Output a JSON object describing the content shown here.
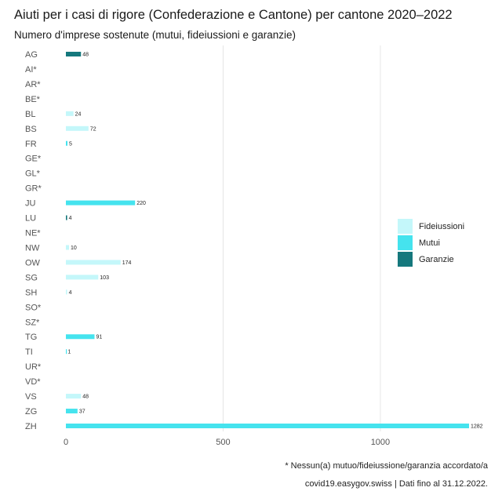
{
  "header": {
    "title": "Aiuti per i casi di rigore (Confederazione e Cantone) per cantone 2020–2022",
    "subtitle": "Numero d'imprese sostenute (mutui, fideiussioni e garanzie)"
  },
  "footer": {
    "footnote": "* Nessun(a) mutuo/fideiussione/garanzia accordato/a",
    "source": "covid19.easygov.swiss | Dati fino al 31.12.2022."
  },
  "legend": [
    {
      "label": "Fideiussioni",
      "color": "#c4f7fa"
    },
    {
      "label": "Mutui",
      "color": "#45e3ee"
    },
    {
      "label": "Garanzie",
      "color": "#15787d"
    }
  ],
  "chart_data": {
    "type": "bar",
    "orientation": "horizontal",
    "categories": [
      "AG",
      "AI*",
      "AR*",
      "BE*",
      "BL",
      "BS",
      "FR",
      "GE*",
      "GL*",
      "GR*",
      "JU",
      "LU",
      "NE*",
      "NW",
      "OW",
      "SG",
      "SH",
      "SO*",
      "SZ*",
      "TG",
      "TI",
      "UR*",
      "VD*",
      "VS",
      "ZG",
      "ZH"
    ],
    "series": [
      {
        "name": "Fideiussioni",
        "color": "#c4f7fa",
        "values": [
          0,
          0,
          0,
          0,
          24,
          72,
          0,
          0,
          0,
          0,
          0,
          0,
          0,
          10,
          174,
          103,
          4,
          0,
          0,
          0,
          0,
          0,
          0,
          48,
          0,
          0
        ]
      },
      {
        "name": "Mutui",
        "color": "#45e3ee",
        "values": [
          0,
          0,
          0,
          0,
          0,
          0,
          5,
          0,
          0,
          0,
          220,
          0,
          0,
          0,
          0,
          0,
          0,
          0,
          0,
          91,
          1,
          0,
          0,
          0,
          37,
          1282
        ]
      },
      {
        "name": "Garanzie",
        "color": "#15787d",
        "values": [
          48,
          0,
          0,
          0,
          0,
          0,
          0,
          0,
          0,
          0,
          0,
          4,
          0,
          0,
          0,
          0,
          0,
          0,
          0,
          0,
          0,
          0,
          0,
          0,
          0,
          0
        ]
      }
    ],
    "data_labels": [
      "48",
      "",
      "",
      "",
      "24",
      "72",
      "5",
      "",
      "",
      "",
      "220",
      "4",
      "",
      "10",
      "174",
      "103",
      "4",
      "",
      "",
      "91",
      "1",
      "",
      "",
      "48",
      "37",
      "1282"
    ],
    "x_ticks": [
      0,
      500,
      1000
    ],
    "xlim": [
      0,
      1282
    ],
    "grid": "vertical major lines",
    "legend_position": "right"
  }
}
